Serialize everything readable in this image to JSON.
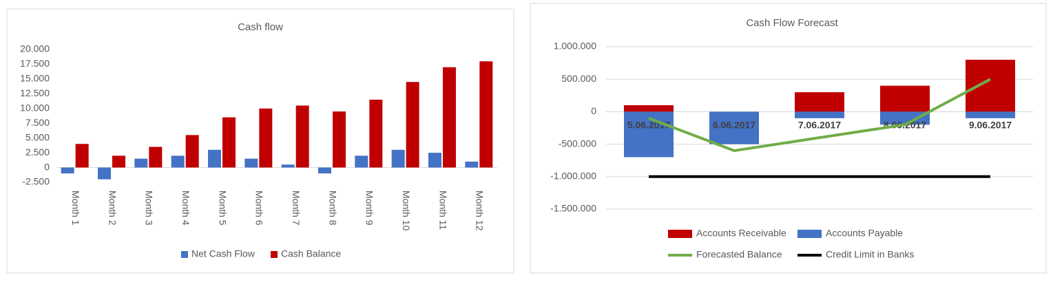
{
  "chart_data": [
    {
      "type": "bar",
      "title": "Cash flow",
      "categories": [
        "Month 1",
        "Month 2",
        "Month 3",
        "Month 4",
        "Month 5",
        "Month 6",
        "Month 7",
        "Month 8",
        "Month 9",
        "Month 10",
        "Month 11",
        "Month 12"
      ],
      "series": [
        {
          "name": "Net Cash Flow",
          "color": "#4472c4",
          "values": [
            -1000,
            -2000,
            1500,
            2000,
            3000,
            1500,
            500,
            -1000,
            2000,
            3000,
            2500,
            1000
          ]
        },
        {
          "name": "Cash Balance",
          "color": "#c00000",
          "values": [
            4000,
            2000,
            3500,
            5500,
            8500,
            10000,
            10500,
            9500,
            11500,
            14500,
            17000,
            18000
          ]
        }
      ],
      "ylim": [
        -2500,
        20000
      ],
      "yticks": [
        {
          "value": -2500,
          "label": "-2.500"
        },
        0,
        {
          "value": 2500,
          "label": "2.500"
        },
        {
          "value": 5000,
          "label": "5.000"
        },
        {
          "value": 7500,
          "label": "7.500"
        },
        {
          "value": 10000,
          "label": "10.000"
        },
        {
          "value": 12500,
          "label": "12.500"
        },
        {
          "value": 15000,
          "label": "15.000"
        },
        {
          "value": 17500,
          "label": "17.500"
        },
        {
          "value": 20000,
          "label": "20.000"
        }
      ],
      "grid": false
    },
    {
      "type": "combo",
      "title": "Cash Flow Forecast",
      "categories": [
        "5.06.2017",
        "6.06.2017",
        "7.06.2017",
        "8.06.2017",
        "9.06.2017"
      ],
      "series": [
        {
          "name": "Accounts Receivable",
          "type": "bar",
          "color": "#c00000",
          "values": [
            100000,
            0,
            300000,
            400000,
            800000
          ]
        },
        {
          "name": "Accounts Payable",
          "type": "bar",
          "color": "#4472c4",
          "values": [
            -700000,
            -500000,
            -100000,
            -200000,
            -100000
          ]
        },
        {
          "name": "Forecasted Balance",
          "type": "line",
          "color": "#70ad47",
          "values": [
            -100000,
            -600000,
            -400000,
            -200000,
            500000
          ]
        },
        {
          "name": "Credit Limit in Banks",
          "type": "line",
          "color": "#000000",
          "values": [
            -1000000,
            -1000000,
            -1000000,
            -1000000,
            -1000000
          ]
        }
      ],
      "ylim": [
        -1500000,
        1000000
      ],
      "yticks": [
        {
          "value": -1500000,
          "label": "-1.500.000"
        },
        {
          "value": -1000000,
          "label": "-1.000.000"
        },
        {
          "value": -500000,
          "label": "-500.000"
        },
        0,
        {
          "value": 500000,
          "label": "500.000"
        },
        {
          "value": 1000000,
          "label": "1.000.000"
        }
      ],
      "grid": true
    }
  ]
}
